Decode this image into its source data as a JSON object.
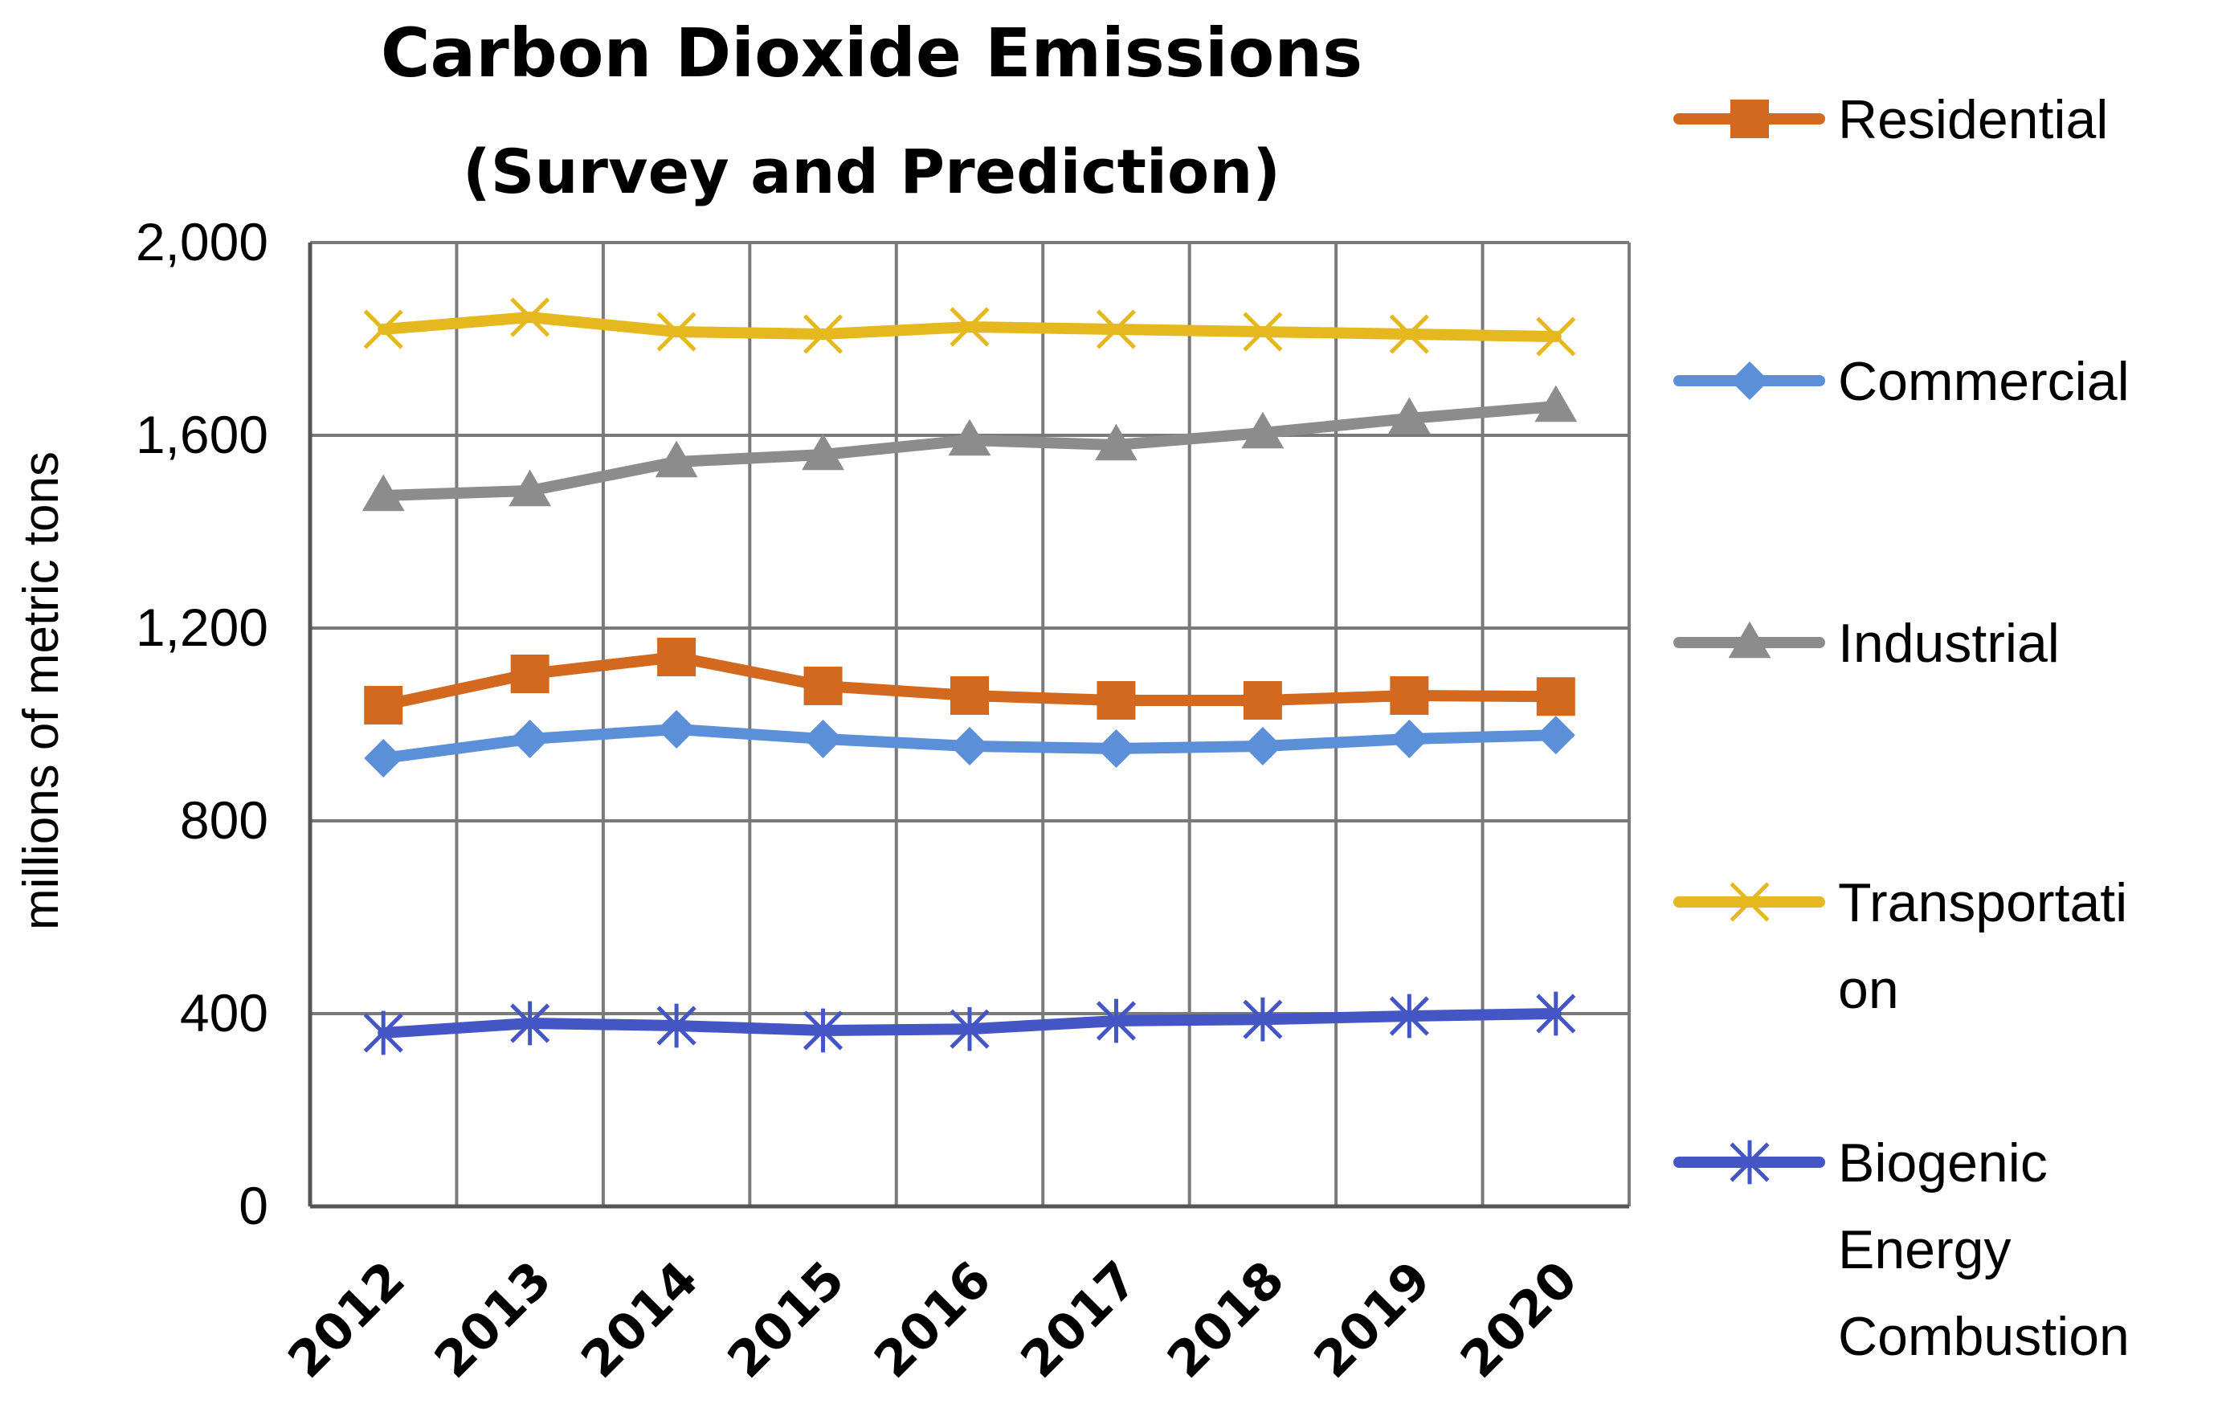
{
  "chart_data": {
    "type": "line",
    "title": "Carbon Dioxide Emissions",
    "subtitle": "(Survey and Prediction)",
    "xlabel": "",
    "ylabel": "millions of metric tons",
    "ylim": [
      0,
      2000
    ],
    "yticks": [
      0,
      400,
      800,
      1200,
      1600,
      2000
    ],
    "ytick_labels": [
      "0",
      "400",
      "800",
      "1,200",
      "1,600",
      "2,000"
    ],
    "categories": [
      "2012",
      "2013",
      "2014",
      "2015",
      "2016",
      "2017",
      "2018",
      "2019",
      "2020"
    ],
    "grid": true,
    "legend": "right",
    "series": [
      {
        "name": "Residential",
        "label_lines": [
          "Residential"
        ],
        "color": "#D2691E",
        "marker": "square",
        "values": [
          1040,
          1105,
          1140,
          1080,
          1060,
          1050,
          1050,
          1060,
          1058
        ]
      },
      {
        "name": "Commercial",
        "label_lines": [
          "Commercial"
        ],
        "color": "#5B8FD8",
        "marker": "diamond",
        "values": [
          930,
          970,
          990,
          970,
          955,
          950,
          955,
          970,
          978
        ]
      },
      {
        "name": "Industrial",
        "label_lines": [
          "Industrial"
        ],
        "color": "#8C8C8C",
        "marker": "triangle",
        "values": [
          1475,
          1485,
          1545,
          1560,
          1590,
          1580,
          1605,
          1635,
          1660
        ]
      },
      {
        "name": "Transportation",
        "label_lines": [
          "Transportati",
          "on"
        ],
        "color": "#E6B820",
        "marker": "x",
        "values": [
          1820,
          1845,
          1815,
          1810,
          1825,
          1820,
          1815,
          1810,
          1805
        ]
      },
      {
        "name": "Biogenic Energy Combustion",
        "label_lines": [
          "Biogenic",
          "Energy",
          "Combustion"
        ],
        "color": "#4455C4",
        "marker": "star",
        "values": [
          360,
          380,
          375,
          365,
          368,
          385,
          388,
          395,
          400
        ]
      }
    ]
  }
}
